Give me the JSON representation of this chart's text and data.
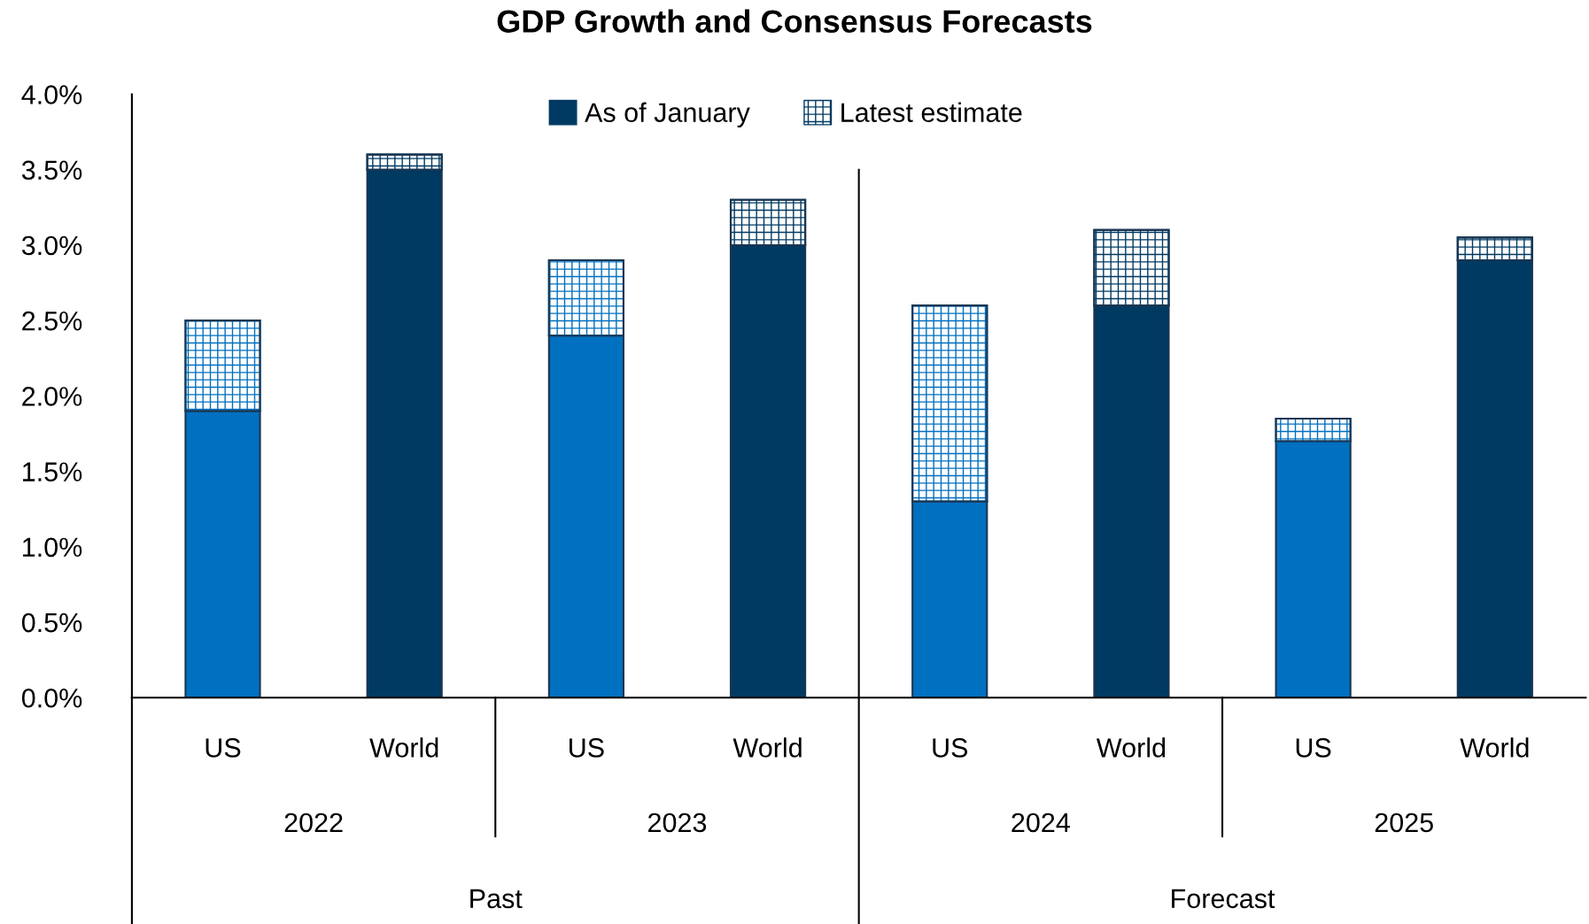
{
  "chart_data": {
    "type": "bar",
    "title": "GDP Growth and Consensus Forecasts",
    "stacked": true,
    "categories": [
      "US",
      "World",
      "US",
      "World",
      "US",
      "World",
      "US",
      "World"
    ],
    "series": [
      {
        "name": "As of January",
        "color": "#003a63",
        "colors": [
          "#0070c0",
          "#003a63",
          "#0070c0",
          "#003a63",
          "#0070c0",
          "#003a63",
          "#0070c0",
          "#003a63"
        ],
        "values": [
          1.9,
          3.5,
          2.4,
          3.0,
          1.3,
          2.6,
          1.7,
          2.9
        ]
      },
      {
        "name": "Latest estimate",
        "color": "#003a63",
        "colors": [
          "#0070c0",
          "#003a63",
          "#0070c0",
          "#003a63",
          "#0070c0",
          "#003a63",
          "#0070c0",
          "#003a63"
        ],
        "values": [
          0.6,
          0.1,
          0.5,
          0.3,
          1.3,
          0.5,
          0.15,
          0.15
        ]
      }
    ],
    "annotations": [
      "2022",
      "2023",
      "2024",
      "2025",
      "Past",
      "Forecast"
    ],
    "ylim": [
      0,
      4
    ],
    "yticks": [
      {
        "value": 0,
        "label": "0.0%"
      },
      {
        "value": 0.5,
        "label": "0.5%"
      },
      {
        "value": 1,
        "label": "1.0%"
      },
      {
        "value": 1.5,
        "label": "1.5%"
      },
      {
        "value": 2,
        "label": "2.0%"
      },
      {
        "value": 2.5,
        "label": "2.5%"
      },
      {
        "value": 3,
        "label": "3.0%"
      },
      {
        "value": 3.5,
        "label": "3.5%"
      },
      {
        "value": 4,
        "label": "4.0%"
      }
    ],
    "grid": false,
    "legend": "top"
  }
}
